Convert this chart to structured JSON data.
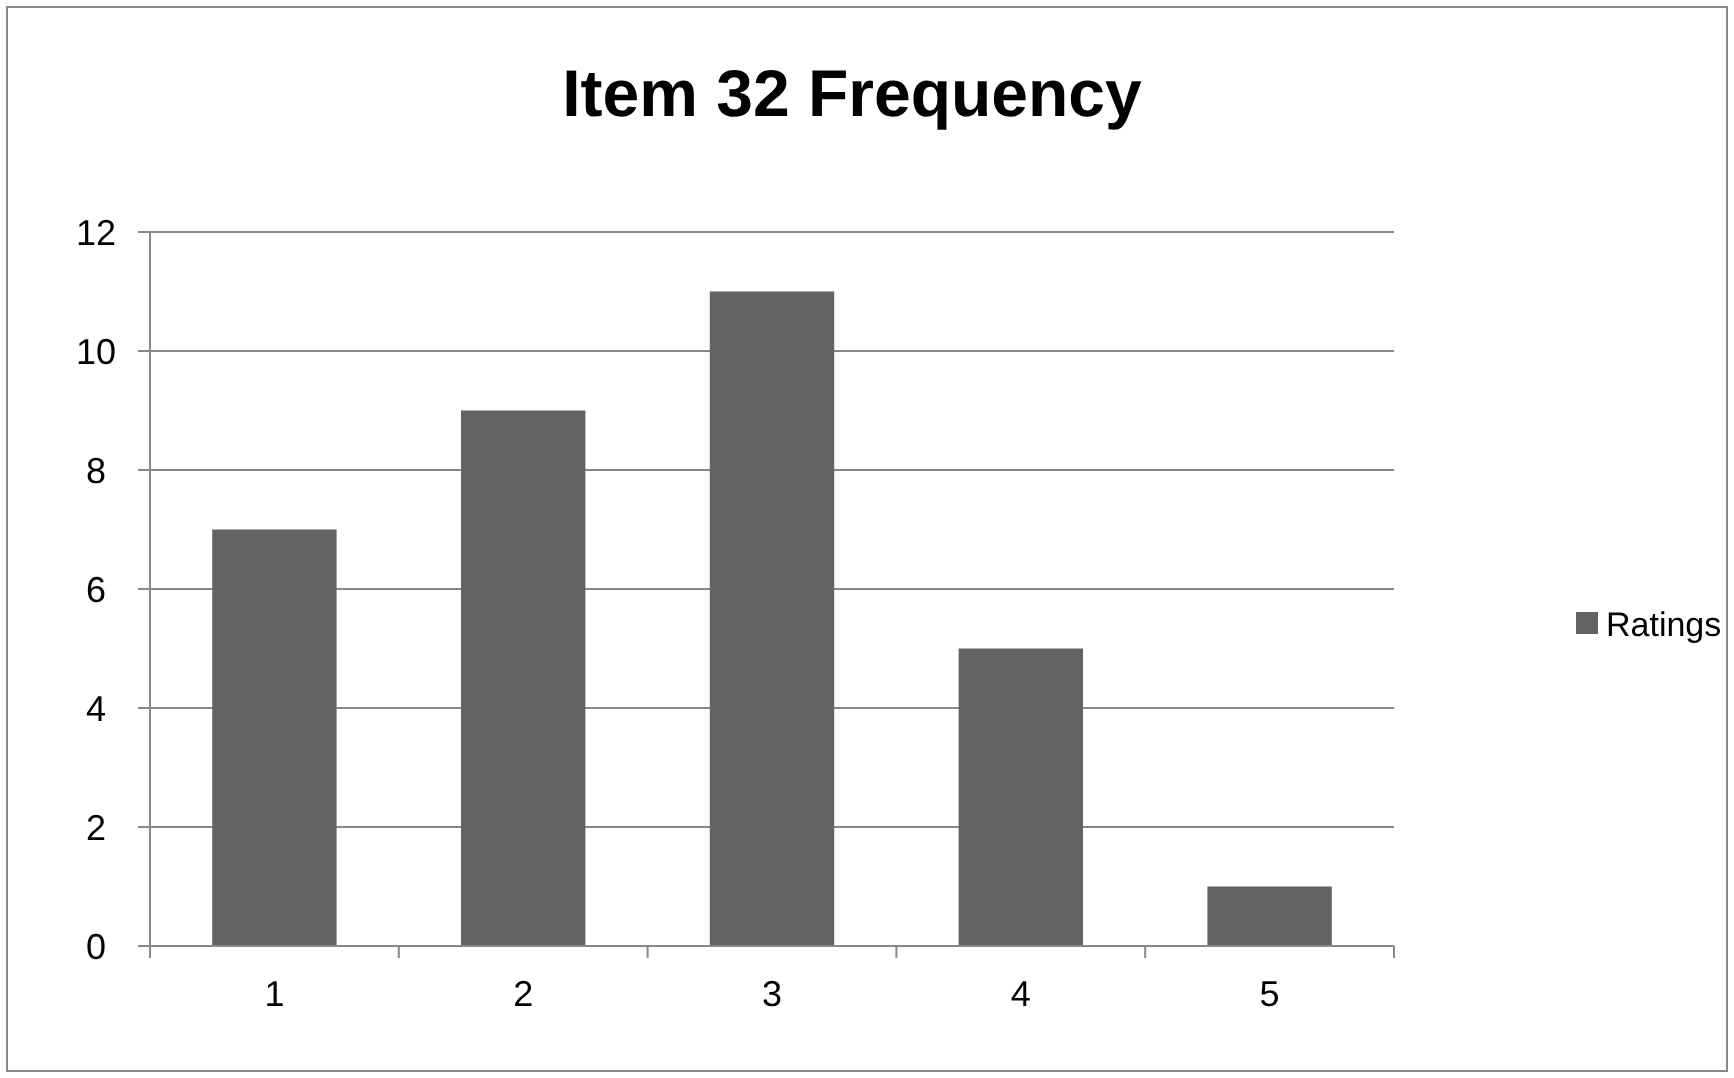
{
  "chart_data": {
    "type": "bar",
    "title": "Item 32 Frequency",
    "categories": [
      "1",
      "2",
      "3",
      "4",
      "5"
    ],
    "series": [
      {
        "name": "Ratings",
        "color": "#636363",
        "values": [
          7,
          9,
          11,
          5,
          1
        ]
      }
    ],
    "ylim": [
      0,
      12
    ],
    "yticks": [
      0,
      2,
      4,
      6,
      8,
      10,
      12
    ],
    "grid": "y",
    "legend": "right"
  }
}
